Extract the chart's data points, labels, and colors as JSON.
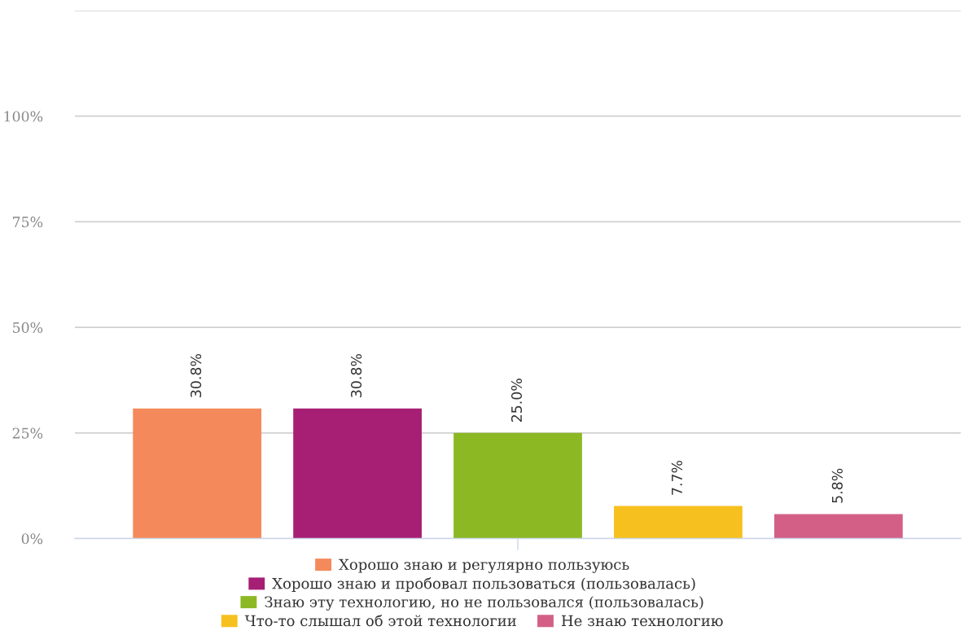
{
  "chart_data": {
    "type": "bar",
    "categories": [
      null
    ],
    "series": [
      {
        "name": "Хорошо знаю и регулярно пользуюсь",
        "color": "#f48a5c",
        "values": [
          30.8
        ],
        "value_labels": [
          "30.8%"
        ]
      },
      {
        "name": "Хорошо знаю и пробовал пользоваться (пользовалась)",
        "color": "#a61f74",
        "values": [
          30.8
        ],
        "value_labels": [
          "30.8%"
        ]
      },
      {
        "name": "Знаю эту технологию, но не пользовался (пользовалась)",
        "color": "#8cb824",
        "values": [
          25.0
        ],
        "value_labels": [
          "25.0%"
        ]
      },
      {
        "name": "Что-то слышал об этой технологии",
        "color": "#f6c01e",
        "values": [
          7.7
        ],
        "value_labels": [
          "7.7%"
        ]
      },
      {
        "name": "Не знаю технологию",
        "color": "#d35f87",
        "values": [
          5.8
        ],
        "value_labels": [
          "5.8%"
        ]
      }
    ],
    "ylim": [
      0,
      125
    ],
    "yticks": [
      {
        "value": 0,
        "label": "0%"
      },
      {
        "value": 25,
        "label": "25%"
      },
      {
        "value": 50,
        "label": "50%"
      },
      {
        "value": 75,
        "label": "75%"
      },
      {
        "value": 100,
        "label": "100%"
      },
      {
        "value": 125,
        "label": null
      }
    ],
    "grid": "y",
    "legend": "bottom",
    "tick_labels": "y"
  }
}
